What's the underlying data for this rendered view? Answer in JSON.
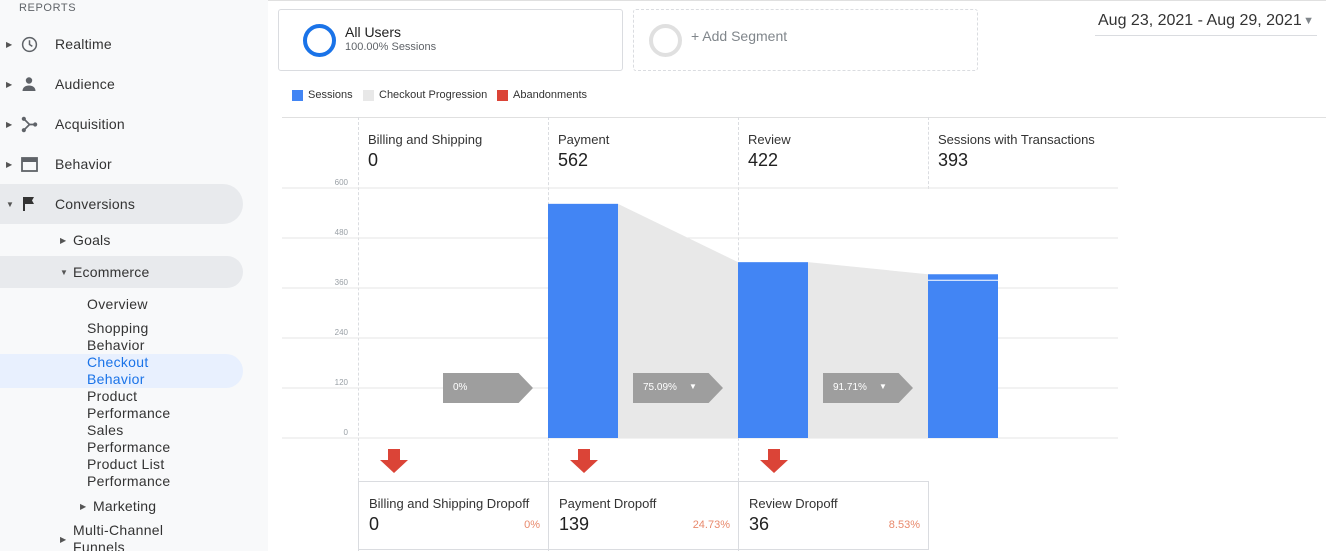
{
  "sidebar": {
    "section_label": "REPORTS",
    "items": [
      {
        "label": "Realtime",
        "icon": "clock-icon"
      },
      {
        "label": "Audience",
        "icon": "person-icon"
      },
      {
        "label": "Acquisition",
        "icon": "branch-icon"
      },
      {
        "label": "Behavior",
        "icon": "browser-window-icon"
      },
      {
        "label": "Conversions",
        "icon": "flag-icon"
      }
    ],
    "conversions_children": {
      "goals": "Goals",
      "ecommerce": "Ecommerce",
      "ecommerce_children": [
        {
          "line1": "Overview",
          "line2": ""
        },
        {
          "line1": "Shopping",
          "line2": "Behavior"
        },
        {
          "line1": "Checkout",
          "line2": "Behavior"
        },
        {
          "line1": "Product",
          "line2": "Performance"
        },
        {
          "line1": "Sales",
          "line2": "Performance"
        },
        {
          "line1": "Product List",
          "line2": "Performance"
        }
      ],
      "marketing": "Marketing",
      "multichannel_line1": "Multi-Channel",
      "multichannel_line2": "Funnels"
    }
  },
  "segments": {
    "active": {
      "title": "All Users",
      "subtitle": "100.00% Sessions"
    },
    "add_label": "+ Add Segment"
  },
  "date_range": {
    "label": "Aug 23, 2021 - Aug 29, 2021"
  },
  "legend": [
    {
      "label": "Sessions",
      "color": "#4285f4"
    },
    {
      "label": "Checkout Progression",
      "color": "#e8e8e8"
    },
    {
      "label": "Abandonments",
      "color": "#db4437"
    }
  ],
  "chart_data": {
    "type": "bar",
    "categories": [
      "Billing and Shipping",
      "Payment",
      "Review",
      "Sessions with Transactions"
    ],
    "values": [
      0,
      562,
      422,
      393
    ],
    "y_ticks": [
      "0",
      "120",
      "240",
      "360",
      "480",
      "600"
    ],
    "ylim": [
      0,
      600
    ],
    "progression_rates": [
      "0%",
      "75.09%",
      "91.71%"
    ],
    "dropoffs": [
      {
        "name": "Billing and Shipping Dropoff",
        "value": "0",
        "pct": "0%"
      },
      {
        "name": "Payment Dropoff",
        "value": "139",
        "pct": "24.73%"
      },
      {
        "name": "Review Dropoff",
        "value": "36",
        "pct": "8.53%"
      }
    ],
    "colors": {
      "sessions": "#4285f4",
      "progression": "#e8e8e8",
      "abandon": "#db4437",
      "arrow": "#9e9e9e"
    }
  }
}
